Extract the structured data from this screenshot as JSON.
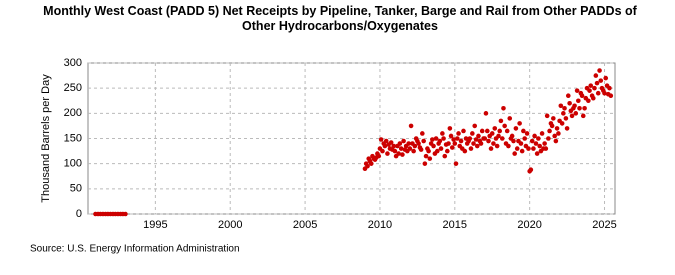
{
  "chart_data": {
    "type": "scatter",
    "title": "Monthly West Coast (PADD 5) Net Receipts by Pipeline, Tanker, Barge and Rail from Other PADDs of Other Hydrocarbons/Oxygenates",
    "y_label": "Thousand Barrels per Day",
    "source": "Source: U.S. Energy Information Administration",
    "color": "#cc0000",
    "grid": true,
    "xlim": [
      1990.5,
      2025.7
    ],
    "xticks": [
      1995,
      2000,
      2005,
      2010,
      2015,
      2020,
      2025
    ],
    "ylim": [
      0,
      300
    ],
    "yticks": [
      0,
      50,
      100,
      150,
      200,
      250,
      300
    ],
    "x": [
      1991,
      1991.17,
      1991.33,
      1991.5,
      1991.67,
      1991.83,
      1992,
      1992.17,
      1992.33,
      1992.5,
      1992.67,
      1992.83,
      1993,
      2009,
      2009.08,
      2009.17,
      2009.25,
      2009.33,
      2009.42,
      2009.5,
      2009.58,
      2009.67,
      2009.75,
      2009.83,
      2009.92,
      2010,
      2010.08,
      2010.17,
      2010.25,
      2010.33,
      2010.42,
      2010.5,
      2010.58,
      2010.67,
      2010.75,
      2010.83,
      2010.92,
      2011,
      2011.08,
      2011.17,
      2011.25,
      2011.33,
      2011.42,
      2011.5,
      2011.58,
      2011.67,
      2011.75,
      2011.83,
      2011.92,
      2012,
      2012.08,
      2012.17,
      2012.25,
      2012.33,
      2012.42,
      2012.5,
      2012.58,
      2012.67,
      2012.75,
      2012.83,
      2012.92,
      2013,
      2013.08,
      2013.17,
      2013.25,
      2013.33,
      2013.42,
      2013.5,
      2013.58,
      2013.67,
      2013.75,
      2013.83,
      2013.92,
      2014,
      2014.08,
      2014.17,
      2014.25,
      2014.33,
      2014.42,
      2014.5,
      2014.58,
      2014.67,
      2014.75,
      2014.83,
      2014.92,
      2015,
      2015.08,
      2015.17,
      2015.25,
      2015.33,
      2015.42,
      2015.5,
      2015.58,
      2015.67,
      2015.75,
      2015.83,
      2015.92,
      2016,
      2016.08,
      2016.17,
      2016.25,
      2016.33,
      2016.42,
      2016.5,
      2016.58,
      2016.67,
      2016.75,
      2016.83,
      2016.92,
      2017,
      2017.08,
      2017.17,
      2017.25,
      2017.33,
      2017.42,
      2017.5,
      2017.58,
      2017.67,
      2017.75,
      2017.83,
      2017.92,
      2018,
      2018.08,
      2018.17,
      2018.25,
      2018.33,
      2018.42,
      2018.5,
      2018.58,
      2018.67,
      2018.75,
      2018.83,
      2018.92,
      2019,
      2019.08,
      2019.17,
      2019.25,
      2019.33,
      2019.42,
      2019.5,
      2019.58,
      2019.67,
      2019.75,
      2019.83,
      2019.92,
      2020,
      2020.08,
      2020.17,
      2020.25,
      2020.33,
      2020.42,
      2020.5,
      2020.58,
      2020.67,
      2020.75,
      2020.83,
      2020.92,
      2021,
      2021.08,
      2021.17,
      2021.25,
      2021.33,
      2021.42,
      2021.5,
      2021.58,
      2021.67,
      2021.75,
      2021.83,
      2021.92,
      2022,
      2022.08,
      2022.17,
      2022.25,
      2022.33,
      2022.42,
      2022.5,
      2022.58,
      2022.67,
      2022.75,
      2022.83,
      2022.92,
      2023,
      2023.08,
      2023.17,
      2023.25,
      2023.33,
      2023.42,
      2023.5,
      2023.58,
      2023.67,
      2023.75,
      2023.83,
      2023.92,
      2024,
      2024.08,
      2024.17,
      2024.25,
      2024.33,
      2024.42,
      2024.5,
      2024.58,
      2024.67,
      2024.75,
      2024.83,
      2024.92,
      2025,
      2025.08,
      2025.17,
      2025.25,
      2025.33,
      2025.42
    ],
    "values": [
      0,
      0,
      0,
      0,
      0,
      0,
      0,
      0,
      0,
      0,
      0,
      0,
      0,
      90,
      100,
      95,
      110,
      105,
      100,
      115,
      110,
      108,
      112,
      120,
      115,
      130,
      148,
      125,
      140,
      135,
      145,
      120,
      138,
      130,
      142,
      128,
      135,
      125,
      115,
      135,
      120,
      140,
      130,
      118,
      145,
      128,
      135,
      125,
      140,
      130,
      175,
      140,
      125,
      135,
      150,
      145,
      140,
      132,
      128,
      160,
      145,
      100,
      115,
      130,
      125,
      110,
      140,
      148,
      135,
      120,
      150,
      125,
      140,
      145,
      130,
      160,
      150,
      115,
      138,
      125,
      140,
      170,
      155,
      132,
      148,
      140,
      100,
      150,
      160,
      135,
      145,
      130,
      165,
      125,
      150,
      140,
      145,
      150,
      130,
      160,
      140,
      175,
      148,
      135,
      155,
      145,
      140,
      165,
      150,
      150,
      200,
      165,
      145,
      155,
      130,
      160,
      140,
      170,
      150,
      135,
      155,
      165,
      185,
      150,
      210,
      175,
      140,
      165,
      135,
      190,
      150,
      155,
      145,
      120,
      170,
      130,
      145,
      180,
      140,
      125,
      165,
      150,
      135,
      160,
      130,
      85,
      88,
      145,
      130,
      155,
      140,
      120,
      150,
      135,
      125,
      160,
      130,
      140,
      130,
      195,
      150,
      165,
      180,
      175,
      190,
      155,
      145,
      170,
      160,
      185,
      215,
      180,
      200,
      210,
      190,
      170,
      235,
      220,
      205,
      195,
      210,
      215,
      200,
      245,
      225,
      210,
      240,
      235,
      195,
      210,
      230,
      250,
      225,
      245,
      255,
      235,
      230,
      250,
      275,
      260,
      240,
      285,
      265,
      250,
      245,
      240,
      270,
      255,
      238,
      250,
      235
    ]
  }
}
